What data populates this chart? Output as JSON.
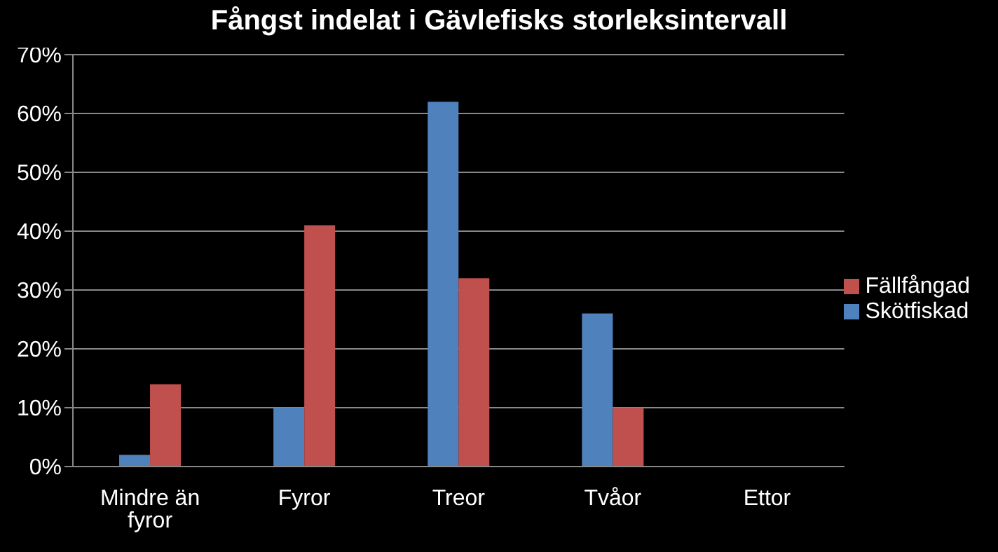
{
  "chart_data": {
    "type": "bar",
    "title": "Fångst indelat i Gävlefisks storleksintervall",
    "categories": [
      "Mindre än fyror",
      "Fyror",
      "Treor",
      "Tvåor",
      "Ettor"
    ],
    "series": [
      {
        "name": "Skötfiskad",
        "color": "#4f81bd",
        "values": [
          2,
          10,
          62,
          26,
          0
        ]
      },
      {
        "name": "Fällfångad",
        "color": "#c0504d",
        "values": [
          14,
          41,
          32,
          10,
          0
        ]
      }
    ],
    "ylim": [
      0,
      70
    ],
    "yticks": [
      {
        "value": 0,
        "label": "0%"
      },
      {
        "value": 10,
        "label": "10%"
      },
      {
        "value": 20,
        "label": "20%"
      },
      {
        "value": 30,
        "label": "30%"
      },
      {
        "value": 40,
        "label": "40%"
      },
      {
        "value": 50,
        "label": "50%"
      },
      {
        "value": 60,
        "label": "60%"
      },
      {
        "value": 70,
        "label": "70%"
      }
    ],
    "grid": "y",
    "legend": "right"
  }
}
